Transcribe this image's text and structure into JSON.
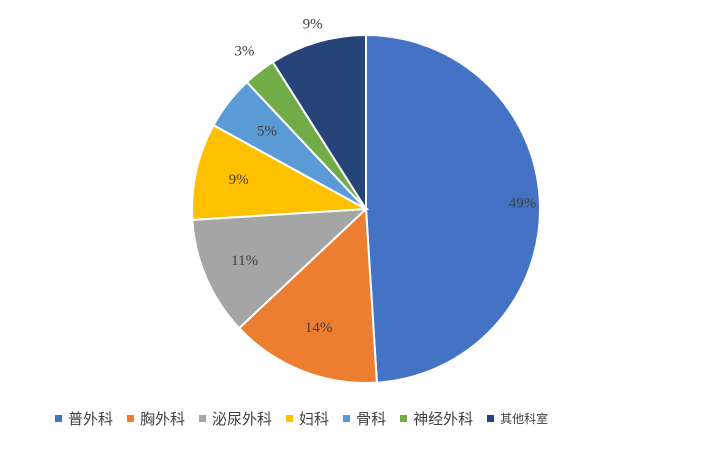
{
  "chart_data": {
    "type": "pie",
    "categories": [
      "普外科",
      "胸外科",
      "泌尿外科",
      "妇科",
      "骨科",
      "神经外科",
      "其他科室"
    ],
    "values": [
      49,
      14,
      11,
      9,
      5,
      3,
      9
    ],
    "value_labels": [
      "49%",
      "14%",
      "11%",
      "9%",
      "5%",
      "3%",
      "9%"
    ],
    "colors": [
      "#4472c4",
      "#ed7d31",
      "#a5a5a5",
      "#ffc000",
      "#5b9bd5",
      "#70ad47",
      "#264478"
    ],
    "legend": "bottom"
  }
}
